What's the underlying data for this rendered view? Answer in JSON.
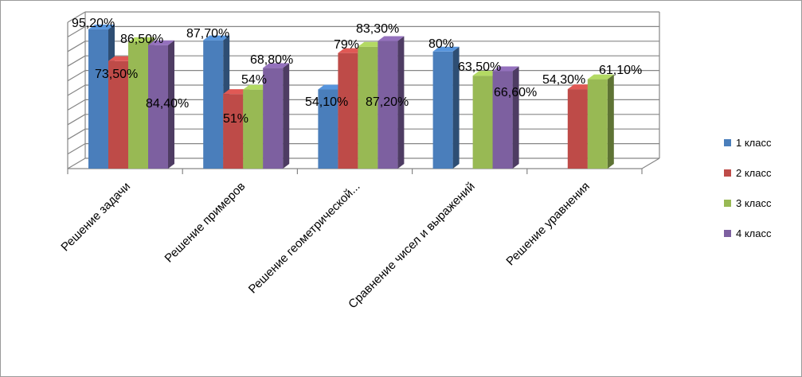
{
  "chart_data": {
    "type": "bar",
    "categories": [
      "Решение задачи",
      "Решение примеров",
      "Решение   геометрической...",
      "Сравнение чисел и выражений",
      "Решение уравнения"
    ],
    "series": [
      {
        "name": "1 класс",
        "color": "#4a7ebb",
        "values": [
          95.2,
          87.7,
          54.1,
          80.0,
          null
        ],
        "labels": [
          "95,20%",
          "87,70%",
          "54,10%",
          "80%",
          null
        ]
      },
      {
        "name": "2 класс",
        "color": "#be4b48",
        "values": [
          73.5,
          51.0,
          79.0,
          null,
          54.3
        ],
        "labels": [
          "73,50%",
          "51%",
          "79%",
          null,
          "54,30%"
        ]
      },
      {
        "name": "3 класс",
        "color": "#98b954",
        "values": [
          86.5,
          54.0,
          83.3,
          63.5,
          61.1
        ],
        "labels": [
          "86,50%",
          "54%",
          "83,30%",
          "63,50%",
          "61,10%"
        ]
      },
      {
        "name": "4 класс",
        "color": "#7d60a0",
        "values": [
          84.4,
          68.8,
          87.2,
          66.6,
          null
        ],
        "labels": [
          "84,40%",
          "68,80%",
          "87,20%",
          "66,60%",
          null
        ]
      }
    ],
    "ylim": [
      0,
      100
    ],
    "grid": true,
    "legend": "right",
    "chart_style": "3d-clustered-column",
    "axis_color": "#868686",
    "grid_color": "#868686"
  }
}
